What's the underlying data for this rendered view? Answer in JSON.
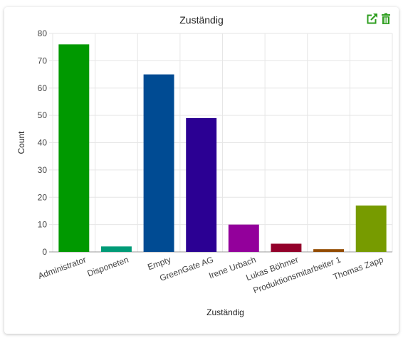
{
  "widget": {
    "title": "Zuständig",
    "tools": [
      {
        "name": "open-external-icon",
        "color": "#2e9e1f"
      },
      {
        "name": "trash-icon",
        "color": "#2e9e1f"
      }
    ]
  },
  "chart_data": {
    "type": "bar",
    "title": "Zuständig",
    "xlabel": "Zuständig",
    "ylabel": "Count",
    "categories": [
      "Administrator",
      "Disponeten",
      "Empty",
      "GreenGate AG",
      "Irene Urbach",
      "Lukas Böhmer",
      "Produktionsmitarbeiter 1",
      "Thomas Zapp"
    ],
    "values": [
      76,
      2,
      65,
      49,
      10,
      3,
      1,
      17
    ],
    "colors": [
      "#009900",
      "#009b77",
      "#004b93",
      "#2b0093",
      "#93009b",
      "#93002b",
      "#934b00",
      "#779b00"
    ],
    "ylim": [
      0,
      80
    ],
    "yticks": [
      0,
      10,
      20,
      30,
      40,
      50,
      60,
      70,
      80
    ],
    "grid": true,
    "legend": "none"
  }
}
